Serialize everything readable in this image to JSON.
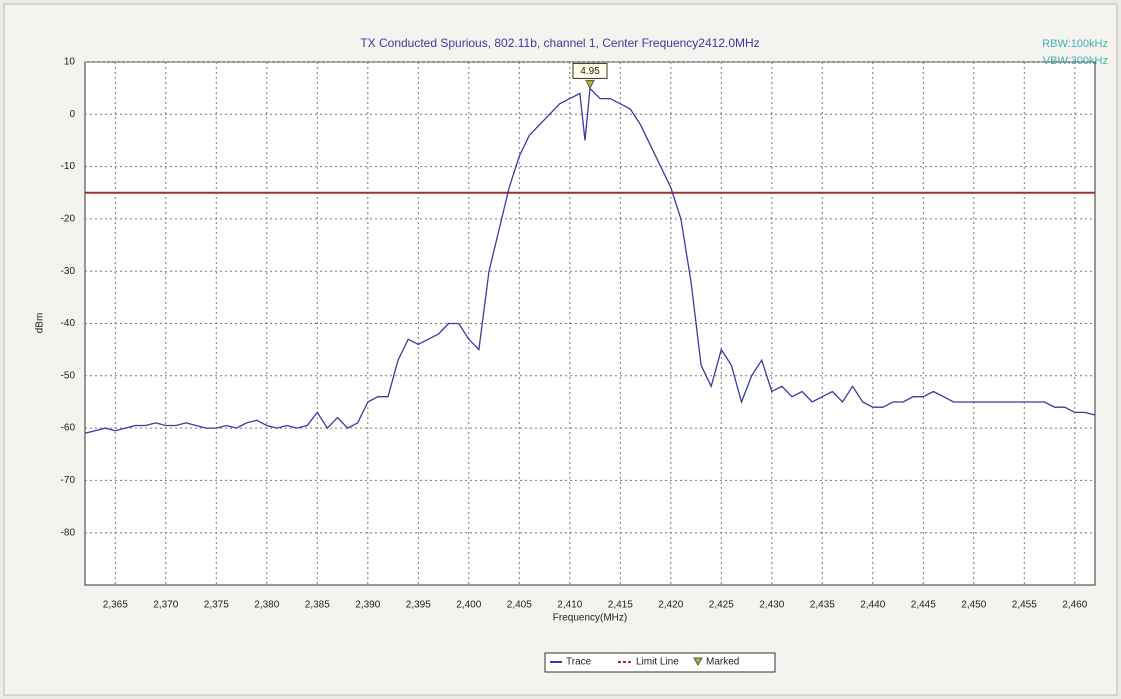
{
  "chart_data": {
    "type": "line",
    "title": "TX Conducted Spurious, 802.11b, channel 1, Center Frequency2412.0MHz",
    "annotations": [
      "RBW:100kHz",
      "VBW:300kHz"
    ],
    "xlabel": "Frequency(MHz)",
    "ylabel": "dBm",
    "xlim": [
      2362,
      2462
    ],
    "ylim": [
      -90,
      10
    ],
    "grid": true,
    "xticks": [
      {
        "value": 2365,
        "label": "2,365"
      },
      {
        "value": 2370,
        "label": "2,370"
      },
      {
        "value": 2375,
        "label": "2,375"
      },
      {
        "value": 2380,
        "label": "2,380"
      },
      {
        "value": 2385,
        "label": "2,385"
      },
      {
        "value": 2390,
        "label": "2,390"
      },
      {
        "value": 2395,
        "label": "2,395"
      },
      {
        "value": 2400,
        "label": "2,400"
      },
      {
        "value": 2405,
        "label": "2,405"
      },
      {
        "value": 2410,
        "label": "2,410"
      },
      {
        "value": 2415,
        "label": "2,415"
      },
      {
        "value": 2420,
        "label": "2,420"
      },
      {
        "value": 2425,
        "label": "2,425"
      },
      {
        "value": 2430,
        "label": "2,430"
      },
      {
        "value": 2435,
        "label": "2,435"
      },
      {
        "value": 2440,
        "label": "2,440"
      },
      {
        "value": 2445,
        "label": "2,445"
      },
      {
        "value": 2450,
        "label": "2,450"
      },
      {
        "value": 2455,
        "label": "2,455"
      },
      {
        "value": 2460,
        "label": "2,460"
      }
    ],
    "yticks": [
      10,
      0,
      -10,
      -20,
      -30,
      -40,
      -50,
      -60,
      -70,
      -80
    ],
    "series": [
      {
        "name": "Trace",
        "color": "#3b3b9c",
        "x": [
          2362,
          2363,
          2364,
          2365,
          2366,
          2367,
          2368,
          2369,
          2370,
          2371,
          2372,
          2373,
          2374,
          2375,
          2376,
          2377,
          2378,
          2379,
          2380,
          2381,
          2382,
          2383,
          2384,
          2385,
          2386,
          2387,
          2388,
          2389,
          2390,
          2391,
          2392,
          2393,
          2394,
          2395,
          2396,
          2397,
          2398,
          2399,
          2400,
          2401,
          2402,
          2403,
          2404,
          2405,
          2406,
          2407,
          2408,
          2409,
          2410,
          2411,
          2411.5,
          2412,
          2413,
          2414,
          2415,
          2416,
          2417,
          2418,
          2419,
          2420,
          2421,
          2422,
          2423,
          2424,
          2425,
          2426,
          2427,
          2428,
          2429,
          2430,
          2431,
          2432,
          2433,
          2434,
          2435,
          2436,
          2437,
          2438,
          2439,
          2440,
          2441,
          2442,
          2443,
          2444,
          2445,
          2446,
          2447,
          2448,
          2449,
          2450,
          2451,
          2452,
          2453,
          2454,
          2455,
          2456,
          2457,
          2458,
          2459,
          2460,
          2461,
          2462
        ],
        "values": [
          -61,
          -60.5,
          -60,
          -60.5,
          -60,
          -59.5,
          -59.5,
          -59,
          -59.5,
          -59.5,
          -59,
          -59.5,
          -60,
          -60,
          -59.5,
          -60,
          -59,
          -58.5,
          -59.5,
          -60,
          -59.5,
          -60,
          -59.5,
          -57,
          -60,
          -58,
          -60,
          -59,
          -55,
          -54,
          -54,
          -47,
          -43,
          -44,
          -43,
          -42,
          -40,
          -40,
          -43,
          -45,
          -30,
          -22,
          -14,
          -8,
          -4,
          -2,
          0,
          2,
          3,
          4,
          -5,
          4.95,
          3,
          3,
          2,
          1,
          -2,
          -6,
          -10,
          -14,
          -20,
          -32,
          -48,
          -52,
          -45,
          -48,
          -55,
          -50,
          -47,
          -53,
          -52,
          -54,
          -53,
          -55,
          -54,
          -53,
          -55,
          -52,
          -55,
          -56,
          -56,
          -55,
          -55,
          -54,
          -54,
          -53,
          -54,
          -55,
          -55,
          -55,
          -55,
          -55,
          -55,
          -55,
          -55,
          -55,
          -55,
          -56,
          -56,
          -57,
          -57,
          -57.5
        ]
      }
    ],
    "limit_line": {
      "name": "Limit Line",
      "value": -15,
      "color": "#a03232"
    },
    "marker": {
      "name": "Marked",
      "x": 2412,
      "y": 4.95,
      "color": "#b5b52a"
    }
  }
}
